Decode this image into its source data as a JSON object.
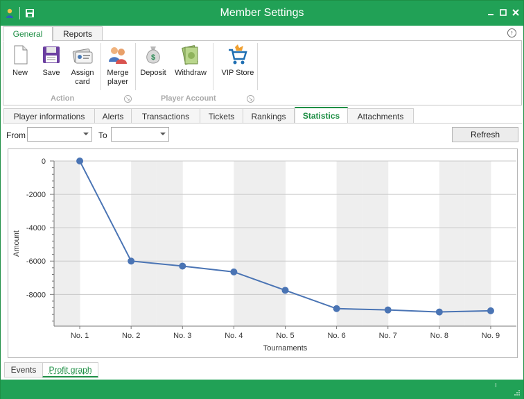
{
  "window": {
    "title": "Member Settings",
    "accent": "#21a156",
    "buttons": [
      "minimize",
      "maximize",
      "close"
    ]
  },
  "ribbon": {
    "tabs": [
      {
        "label": "General",
        "active": true
      },
      {
        "label": "Reports",
        "active": false
      }
    ],
    "buttons": [
      {
        "label": "New",
        "icon": "new-document-icon"
      },
      {
        "label": "Save",
        "icon": "floppy-disk-icon"
      },
      {
        "label": "Assign\ncard",
        "icon": "id-card-icon"
      },
      {
        "label": "Merge\nplayer",
        "icon": "merge-users-icon"
      },
      {
        "label": "Deposit",
        "icon": "money-bag-icon"
      },
      {
        "label": "Withdraw",
        "icon": "cash-stack-icon"
      },
      {
        "label": "VIP Store",
        "icon": "shopping-cart-icon"
      }
    ],
    "groups": [
      {
        "label": "Action"
      },
      {
        "label": "Player Account"
      }
    ]
  },
  "page_tabs": [
    {
      "label": "Player informations",
      "active": false
    },
    {
      "label": "Alerts",
      "active": false
    },
    {
      "label": "Transactions",
      "active": false
    },
    {
      "label": "Tickets",
      "active": false
    },
    {
      "label": "Rankings",
      "active": false
    },
    {
      "label": "Statistics",
      "active": true
    },
    {
      "label": "Attachments",
      "active": false
    }
  ],
  "filter": {
    "from_label": "From",
    "from_value": "",
    "to_label": "To",
    "to_value": "",
    "refresh_label": "Refresh"
  },
  "chart_data": {
    "type": "line",
    "categories": [
      "No. 1",
      "No. 2",
      "No. 3",
      "No. 4",
      "No. 5",
      "No. 6",
      "No. 7",
      "No. 8",
      "No. 9"
    ],
    "values": [
      0,
      -6000,
      -6300,
      -6650,
      -7750,
      -8850,
      -8930,
      -9050,
      -8980
    ],
    "xlabel": "Tournaments",
    "ylabel": "Amount",
    "yticks": [
      0,
      -2000,
      -4000,
      -6000,
      -8000
    ],
    "ylim": [
      -9900,
      0
    ],
    "grid": true,
    "line_color": "#4a74b4",
    "alt_band_color": "#eeeeee"
  },
  "bottom_tabs": [
    {
      "label": "Events",
      "active": false
    },
    {
      "label": "Profit graph",
      "active": true
    }
  ]
}
